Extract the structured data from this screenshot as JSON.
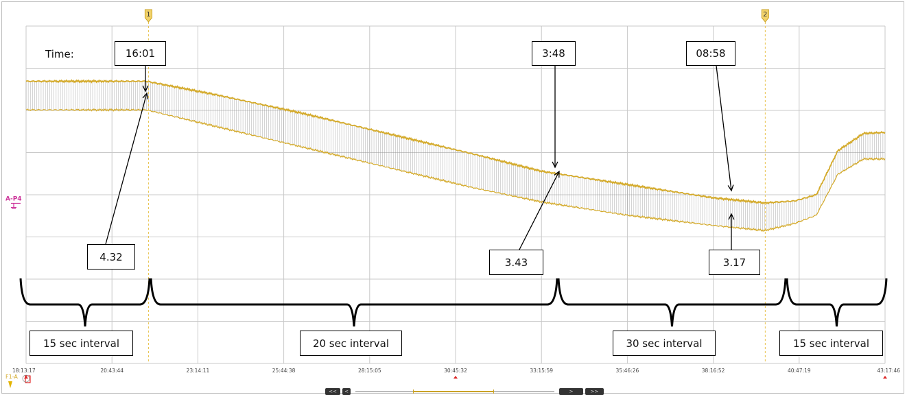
{
  "chart_data": {
    "type": "line",
    "x_tick_labels": [
      "18:13:17",
      "20:43:44",
      "23:14:11",
      "25:44:38",
      "28:15:05",
      "30:45:32",
      "33:15:59",
      "35:46:26",
      "38:16:52",
      "40:47:19",
      "43:17:46"
    ],
    "series": [
      {
        "color": "#d4aa2a",
        "x_index": [
          0,
          1.4,
          2.2,
          3.2,
          4.2,
          5.2,
          6.0,
          7.0,
          8.0,
          8.6,
          8.95,
          9.2,
          9.45,
          9.75,
          10.0
        ],
        "y": [
          4.36,
          4.36,
          4.23,
          4.05,
          3.85,
          3.65,
          3.48,
          3.35,
          3.22,
          3.17,
          3.19,
          3.25,
          3.68,
          3.85,
          3.86
        ]
      },
      {
        "color": "#d4aa2a",
        "x_index": [
          0,
          1.4,
          2.2,
          3.2,
          4.2,
          5.2,
          6.0,
          7.0,
          8.0,
          8.6,
          8.95,
          9.2,
          9.45,
          9.75,
          10.0
        ],
        "y": [
          4.08,
          4.08,
          3.92,
          3.72,
          3.52,
          3.32,
          3.18,
          3.05,
          2.95,
          2.9,
          2.97,
          3.05,
          3.45,
          3.6,
          3.6
        ]
      }
    ],
    "ylim": [
      1.6,
      4.9
    ],
    "cursors": [
      {
        "label": "1",
        "x_index": 1.425
      },
      {
        "label": "2",
        "x_index": 8.605
      }
    ],
    "channel_label": "A-P4",
    "trigger_label": "F1-A",
    "annotations": {
      "time_label": "Time:",
      "times": [
        "16:01",
        "3:48",
        "08:58"
      ],
      "values": [
        "4.32",
        "3.43",
        "3.17"
      ],
      "intervals": [
        "15 sec interval",
        "20 sec interval",
        "30 sec interval",
        "15 sec interval"
      ]
    },
    "grid": true
  },
  "colors": {
    "trace": "#d4aa2a",
    "grid": "#c8c8c8",
    "channel": "#cc3399",
    "cursor": "#e8c24a"
  },
  "navigation": {
    "labels": [
      "<<",
      "<",
      ">",
      ">>"
    ]
  }
}
